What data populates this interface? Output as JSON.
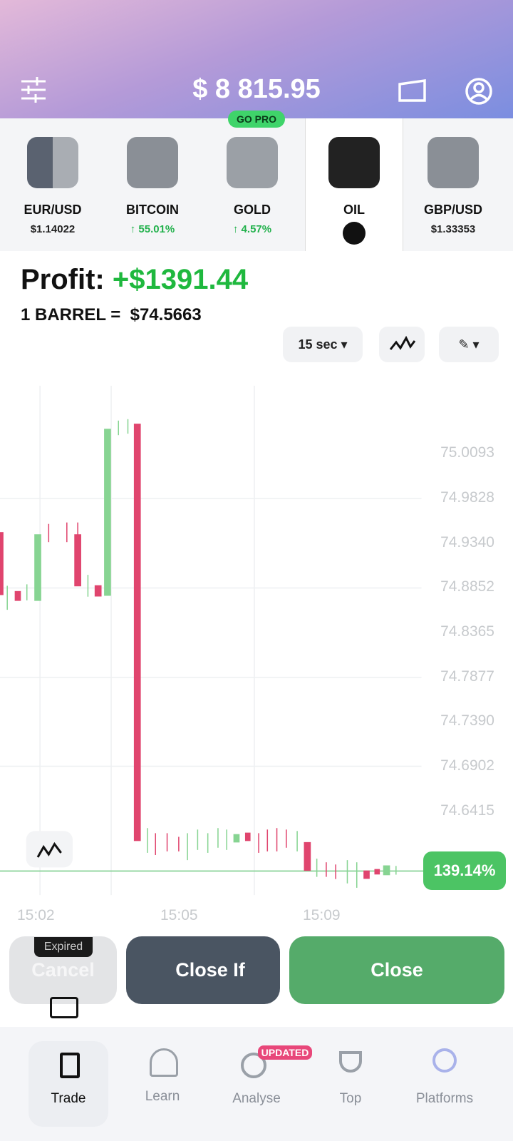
{
  "header": {
    "balance": "$ 8 815.95",
    "badge": "GO PRO"
  },
  "assets": [
    {
      "name": "EUR/USD",
      "value": "$1.14022"
    },
    {
      "name": "BITCOIN",
      "value": "↑ 55.01%"
    },
    {
      "name": "GOLD",
      "value": "↑ 4.57%"
    },
    {
      "name": "OIL"
    },
    {
      "name": "GBP/USD",
      "value": "$1.33353"
    }
  ],
  "profit": {
    "label": "Profit:",
    "value": "+$1391.44"
  },
  "rate": {
    "label": "1 BARREL =",
    "value": "$74.5663"
  },
  "controls": {
    "interval": "15 sec ▾"
  },
  "chart": {
    "price_labels": [
      "75.0093",
      "74.9828",
      "74.9340",
      "74.8852",
      "74.8365",
      "74.7877",
      "74.7390",
      "74.6902",
      "74.6415"
    ],
    "time_labels": [
      "15:02",
      "15:05",
      "15:09"
    ],
    "badge": "139.14%"
  },
  "actions": {
    "expired": "Expired",
    "cancel": "Cancel",
    "close_if": "Close If",
    "close": "Close"
  },
  "nav": [
    {
      "label": "Trade"
    },
    {
      "label": "Learn"
    },
    {
      "label": "Analyse",
      "badge": "UPDATED"
    },
    {
      "label": "Top"
    },
    {
      "label": "Platforms"
    }
  ]
}
